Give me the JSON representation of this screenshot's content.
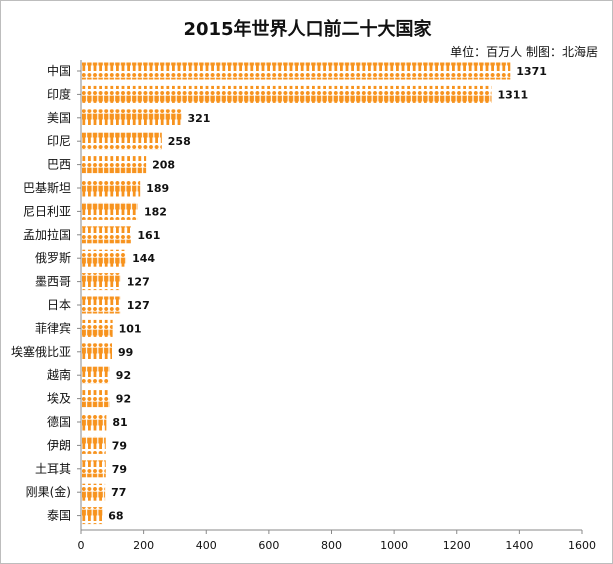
{
  "chart_data": {
    "type": "bar",
    "orientation": "horizontal",
    "title": "2015年世界人口前二十大国家",
    "subtitle": "单位：百万人 制图：北海居",
    "categories": [
      "中国",
      "印度",
      "美国",
      "印尼",
      "巴西",
      "巴基斯坦",
      "尼日利亚",
      "孟加拉国",
      "俄罗斯",
      "墨西哥",
      "日本",
      "菲律宾",
      "埃塞俄比亚",
      "越南",
      "埃及",
      "德国",
      "伊朗",
      "土耳其",
      "刚果(金)",
      "泰国"
    ],
    "values": [
      1371,
      1311,
      321,
      258,
      208,
      189,
      182,
      161,
      144,
      127,
      127,
      101,
      99,
      92,
      92,
      81,
      79,
      79,
      77,
      68
    ],
    "value_labels": [
      "1371",
      "1311",
      "321",
      "258",
      "208",
      "189",
      "182",
      "161",
      "144",
      "127",
      "127",
      "101",
      "99",
      "92",
      "92",
      "81",
      "79",
      "79",
      "77",
      "68"
    ],
    "xlim": [
      0,
      1600
    ],
    "x_ticks": [
      0,
      200,
      400,
      600,
      800,
      1000,
      1200,
      1400,
      1600
    ],
    "x_tick_labels": [
      "0",
      "200",
      "400",
      "600",
      "800",
      "1000",
      "1200",
      "1400",
      "1600"
    ],
    "grid": false,
    "bar_style": "person-pictograms",
    "colors": {
      "bar": "#f7931e",
      "bar_dark": "#e8700a",
      "axis": "#888888"
    }
  }
}
